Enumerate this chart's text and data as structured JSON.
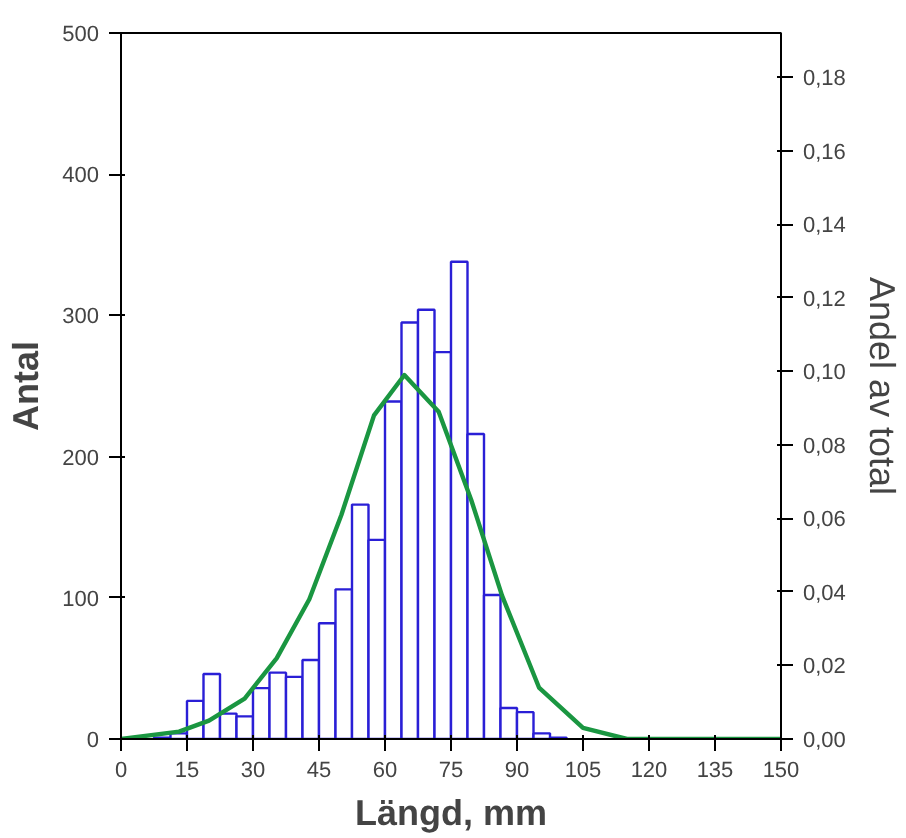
{
  "chart_data": {
    "type": "histogram",
    "xlabel": "Längd, mm",
    "ylabel": "Antal",
    "y2label": "Andel av total",
    "bins": [
      7.5,
      11.25,
      15,
      18.75,
      22.5,
      26.25,
      30,
      33.75,
      37.5,
      41.25,
      45,
      48.75,
      52.5,
      56.25,
      60,
      63.75,
      67.5,
      71.25,
      75,
      78.75,
      82.5,
      86.25,
      90,
      93.75,
      97.5,
      101.25
    ],
    "values": [
      1,
      4,
      27,
      46,
      18,
      16,
      36,
      47,
      44,
      56,
      82,
      106,
      166,
      141,
      239,
      295,
      304,
      274,
      338,
      216,
      102,
      22,
      19,
      4,
      1
    ],
    "color": "#2a1fd6",
    "series": [
      {
        "type": "line",
        "axis": "y2",
        "color": "#1a9641",
        "x": [
          0,
          13.2,
          20,
          28.1,
          35.4,
          42.8,
          50.1,
          57.5,
          64.4,
          72.2,
          79.6,
          86.6,
          95,
          105,
          115,
          150
        ],
        "values": [
          0,
          0.002,
          0.005,
          0.011,
          0.022,
          0.038,
          0.061,
          0.088,
          0.099,
          0.089,
          0.065,
          0.039,
          0.014,
          0.003,
          0,
          0
        ]
      }
    ],
    "xlim": [
      0,
      150
    ],
    "xticks": [
      0,
      15,
      30,
      45,
      60,
      75,
      90,
      105,
      120,
      135,
      150
    ],
    "ylim": [
      0,
      500
    ],
    "yticks": [
      0,
      100,
      200,
      300,
      400,
      500
    ],
    "y2lim": [
      0,
      0.192
    ],
    "y2ticks": [
      {
        "value": 0,
        "label": "0,00"
      },
      {
        "value": 0.02,
        "label": "0,02"
      },
      {
        "value": 0.04,
        "label": "0,04"
      },
      {
        "value": 0.06,
        "label": "0,06"
      },
      {
        "value": 0.08,
        "label": "0,08"
      },
      {
        "value": 0.1,
        "label": "0,10"
      },
      {
        "value": 0.12,
        "label": "0,12"
      },
      {
        "value": 0.14,
        "label": "0,14"
      },
      {
        "value": 0.16,
        "label": "0,16"
      },
      {
        "value": 0.18,
        "label": "0,18"
      }
    ],
    "grid": false
  }
}
